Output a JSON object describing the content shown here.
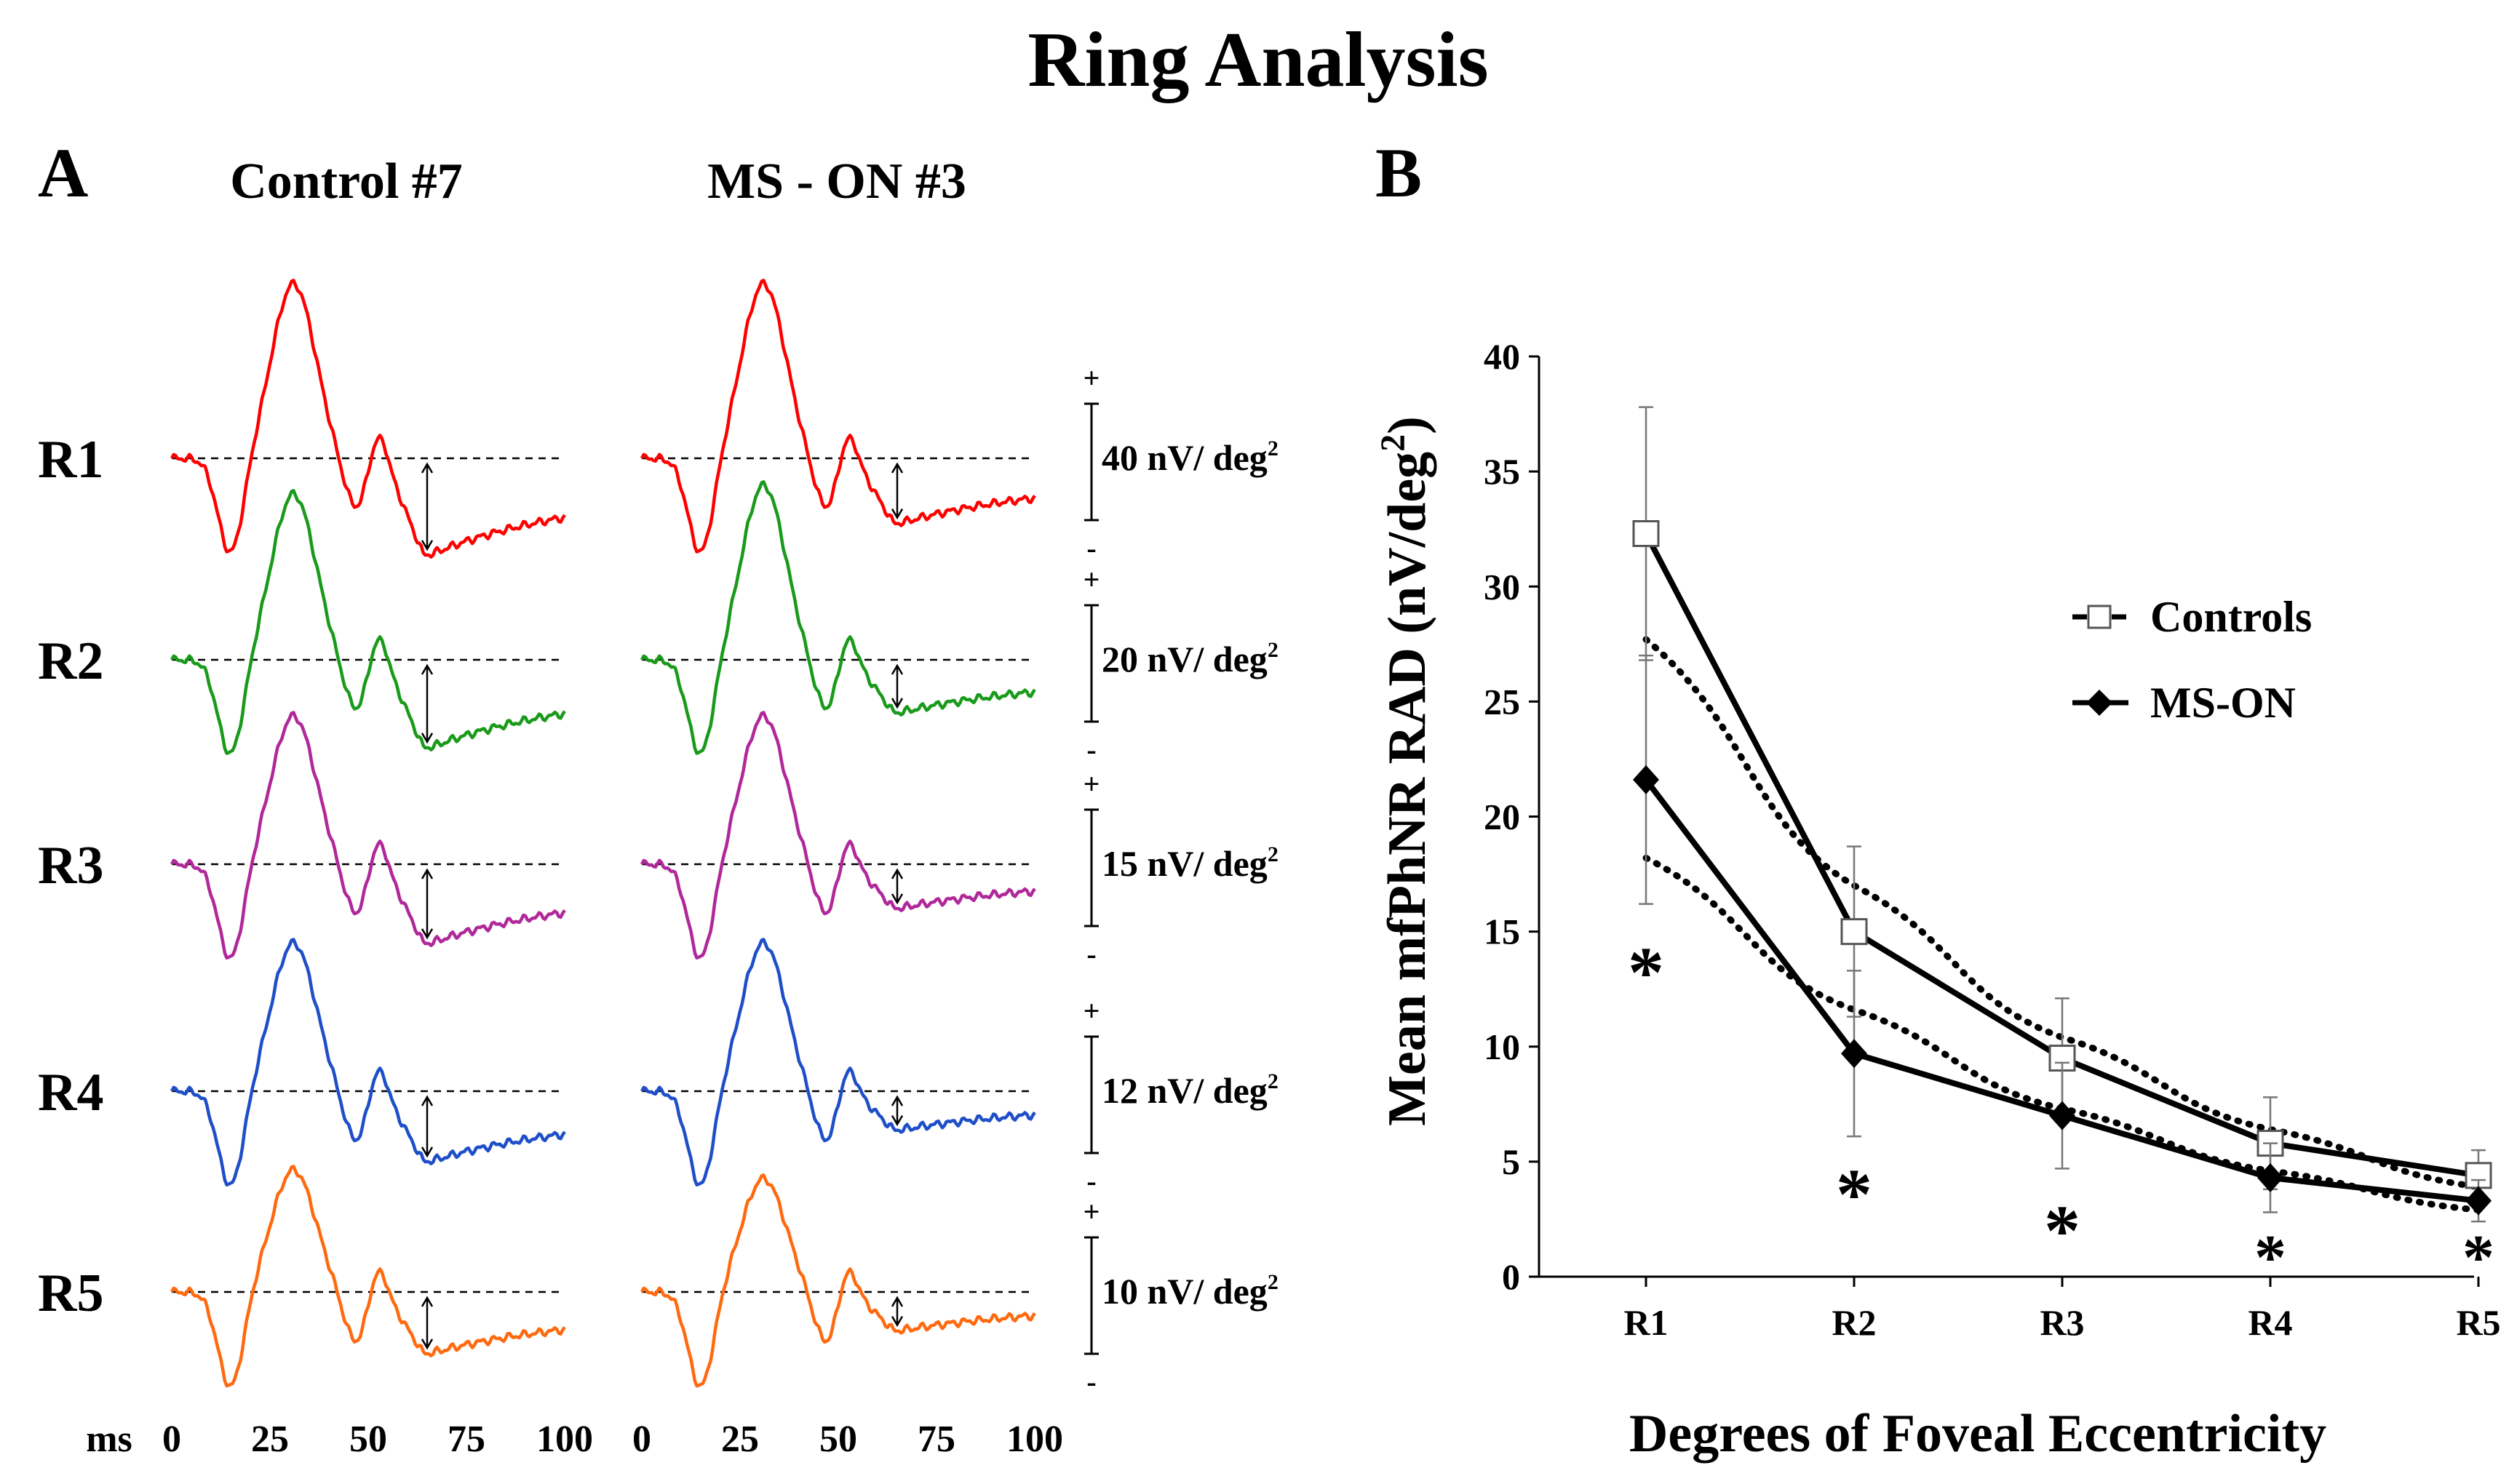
{
  "title": "Ring Analysis",
  "panel_a": {
    "label": "A",
    "columns": [
      {
        "title": "Control #7",
        "trace_key": "control"
      },
      {
        "title": "MS - ON #3",
        "trace_key": "mson"
      }
    ],
    "x_unit": "ms",
    "x_ticks": [
      "0",
      "25",
      "50",
      "75",
      "100"
    ],
    "rings": [
      {
        "name": "R1",
        "color": "#ff0000",
        "scale_label": "40 nV/ deg",
        "scale_sup": "2",
        "plus": "+",
        "minus": "-",
        "control": {
          "max": 1.0,
          "min": -0.5,
          "trough": -0.55
        },
        "mson": {
          "max": 1.0,
          "min": -0.42,
          "trough": -0.37
        }
      },
      {
        "name": "R2",
        "color": "#1a9a1a",
        "scale_label": "20 nV/ deg",
        "scale_sup": "2",
        "plus": "+",
        "minus": "-",
        "control": {
          "max": 0.95,
          "min": -0.45,
          "trough": -0.5
        },
        "mson": {
          "max": 1.0,
          "min": -0.45,
          "trough": -0.3
        }
      },
      {
        "name": "R3",
        "color": "#b0289a",
        "scale_label": "15 nV/ deg",
        "scale_sup": "2",
        "plus": "+",
        "minus": "-",
        "control": {
          "max": 0.85,
          "min": -0.42,
          "trough": -0.45
        },
        "mson": {
          "max": 0.85,
          "min": -0.42,
          "trough": -0.25
        }
      },
      {
        "name": "R4",
        "color": "#1f4fc8",
        "scale_label": "12 nV/ deg",
        "scale_sup": "2",
        "plus": "+",
        "minus": "-",
        "control": {
          "max": 0.85,
          "min": -0.35,
          "trough": -0.4
        },
        "mson": {
          "max": 0.85,
          "min": -0.32,
          "trough": -0.22
        }
      },
      {
        "name": "R5",
        "color": "#ff6a10",
        "scale_label": "10 nV/ deg",
        "scale_sup": "2",
        "plus": "+",
        "minus": "-",
        "control": {
          "max": 0.7,
          "min": -0.32,
          "trough": -0.35
        },
        "mson": {
          "max": 0.65,
          "min": -0.3,
          "trough": -0.22
        }
      }
    ]
  },
  "panel_b": {
    "label": "B"
  },
  "chart_data": {
    "type": "line",
    "categories": [
      "R1",
      "R2",
      "R3",
      "R4",
      "R5"
    ],
    "xlabel": "Degrees of Foveal Eccentricity",
    "ylabel": "Mean mfPhNR RAD (nV/deg",
    "ylabel_sup": "2",
    "ylabel_end": ")",
    "ylim": [
      0,
      40
    ],
    "yticks": [
      "0",
      "5",
      "10",
      "15",
      "20",
      "25",
      "30",
      "35",
      "40"
    ],
    "legend_position": "right",
    "series": [
      {
        "name": "Controls",
        "marker": "open-square",
        "values": [
          32.3,
          15.0,
          9.5,
          5.8,
          4.4
        ],
        "errors": [
          5.5,
          3.7,
          2.6,
          2.0,
          1.1
        ]
      },
      {
        "name": "MS-ON",
        "marker": "filled-diamond",
        "values": [
          21.6,
          9.7,
          7.0,
          4.3,
          3.3
        ],
        "errors": [
          5.4,
          3.6,
          2.3,
          1.5,
          0.9
        ]
      }
    ],
    "trendlines": [
      {
        "series": "Controls",
        "style": "dotted",
        "values": [
          27.7,
          17.0,
          10.4,
          6.4,
          3.9
        ]
      },
      {
        "series": "MS-ON",
        "style": "dotted",
        "values": [
          18.2,
          11.6,
          7.3,
          4.6,
          2.9
        ]
      }
    ],
    "significance_marker": "*",
    "significant_categories": [
      "R1",
      "R2",
      "R3",
      "R4",
      "R5"
    ]
  }
}
